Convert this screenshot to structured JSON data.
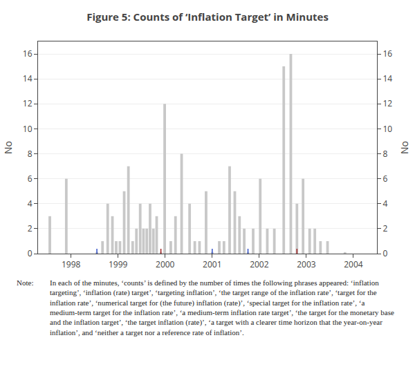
{
  "chart_data": {
    "type": "bar",
    "title": "Figure 5: Counts of ‘Inflation Target’ in Minutes",
    "ylabel": "No",
    "y2label": "No",
    "xlim": [
      1997.3,
      2004.5
    ],
    "xticks": [
      1998,
      1999,
      2000,
      2001,
      2002,
      2003,
      2004
    ],
    "ylim": [
      0,
      17
    ],
    "yticks": [
      0,
      2,
      4,
      6,
      8,
      10,
      12,
      14,
      16
    ],
    "y2lim": [
      0,
      17
    ],
    "y2ticks": [
      0,
      2,
      4,
      6,
      8,
      10,
      12,
      14,
      16
    ],
    "grid": true,
    "annotations": [
      "Note:",
      "In each of the minutes, ‘counts’ is defined by the number of times the following phrases appeared: ‘inflation targeting’, ‘inflation (rate) target’, ‘targeting inflation’, ‘the target range of the inflation rate’, ‘target for the inflation rate’, ‘numerical target for (the future) inflation (rate)’, ‘special target for the inflation rate’, ‘a medium-term target for the inflation rate’, ‘a medium-term inflation rate target’, ‘the target for the monetary base and the inflation target’, ‘the target inflation (rate)’, ‘a target with a clearer time horizon that the year-on-year inflation’, and ‘neither a target nor a reference rate of inflation’."
    ],
    "series": [
      {
        "type": "bar",
        "color": "#c8c8c8",
        "x": [
          1997.55,
          1997.9,
          1998.55,
          1998.67,
          1998.78,
          1998.88,
          1998.96,
          1999.04,
          1999.13,
          1999.22,
          1999.31,
          1999.39,
          1999.47,
          1999.54,
          1999.61,
          1999.68,
          1999.75,
          1999.82,
          1999.91,
          1999.99,
          2000.12,
          2000.22,
          2000.35,
          2000.52,
          2000.63,
          2000.73,
          2000.87,
          2001.0,
          2001.15,
          2001.25,
          2001.37,
          2001.48,
          2001.58,
          2001.68,
          2001.76,
          2001.87,
          2002.02,
          2002.17,
          2002.32,
          2002.52,
          2002.67,
          2002.8,
          2002.93,
          2003.07,
          2003.18,
          2003.3,
          2003.45,
          2003.82
        ],
        "values": [
          3,
          6,
          0.12,
          1,
          4,
          3,
          1,
          1,
          5,
          7,
          1,
          2,
          4,
          2,
          2,
          4,
          2,
          3,
          0.12,
          12,
          1,
          3,
          8,
          4,
          1,
          1,
          5,
          0.12,
          1,
          1,
          7,
          5,
          3,
          2,
          0.12,
          2,
          6,
          2,
          2,
          15,
          16,
          4,
          6,
          2,
          2,
          1,
          1,
          0.12
        ]
      },
      {
        "type": "scatter",
        "marker": "tick",
        "color": "#3050C8",
        "x": [
          1998.55,
          2001.0,
          2001.76
        ]
      },
      {
        "type": "scatter",
        "marker": "tick",
        "color": "#A02020",
        "x": [
          1999.91,
          2002.8
        ]
      }
    ]
  }
}
